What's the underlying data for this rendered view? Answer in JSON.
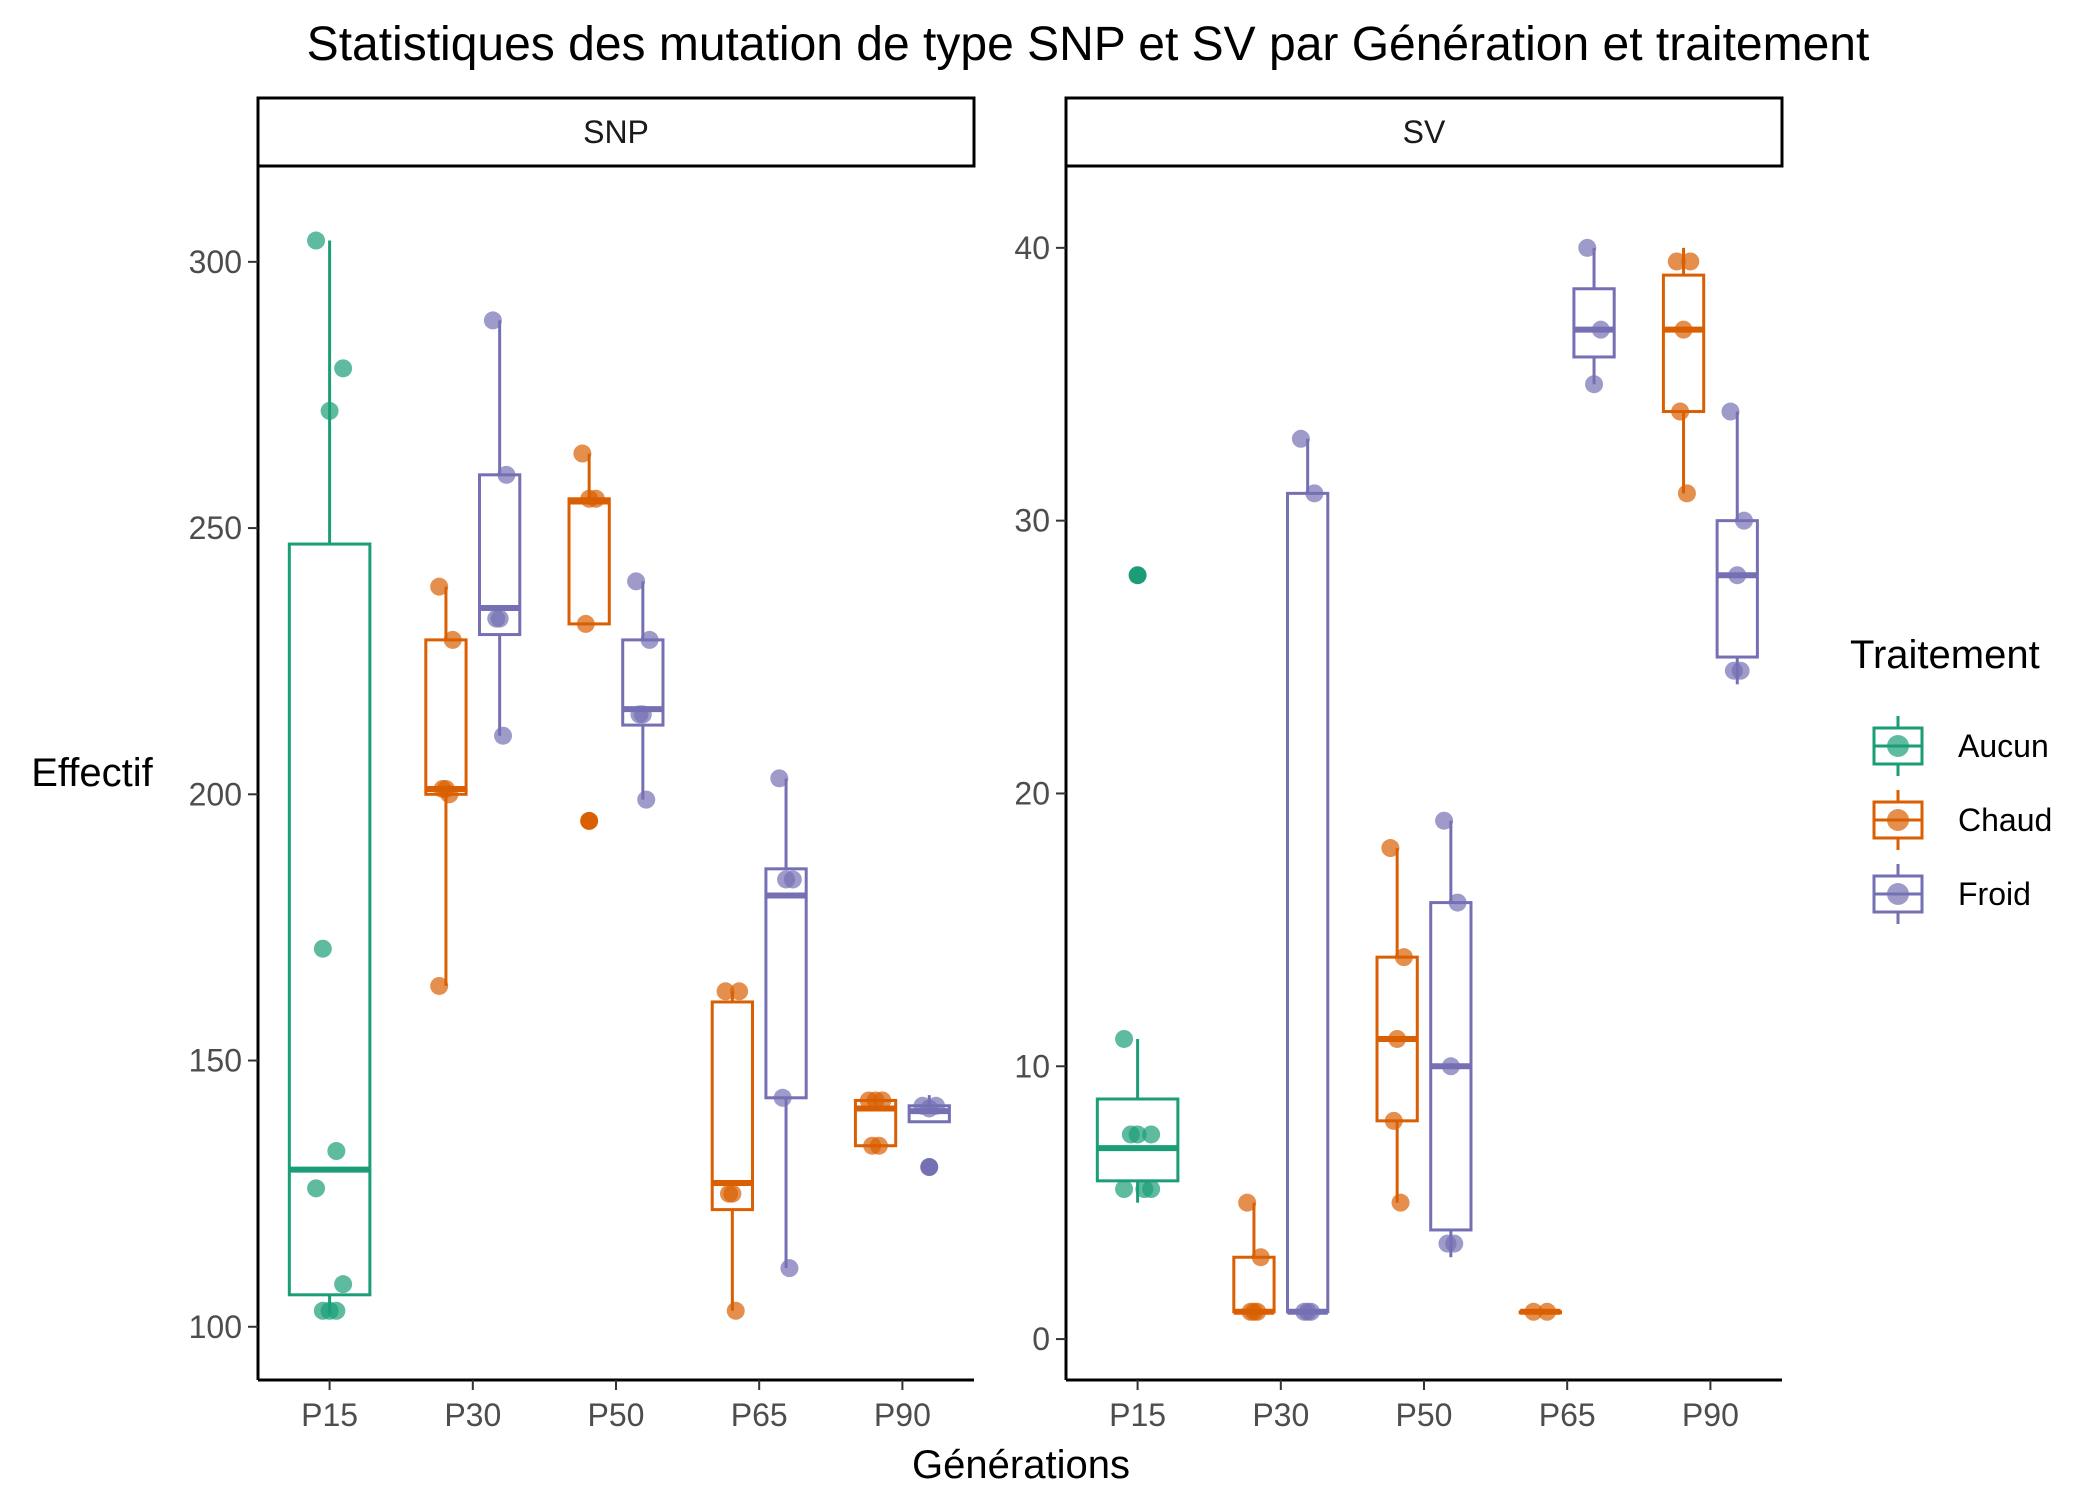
{
  "chart_data": {
    "type": "boxplot",
    "title": "Statistiques des mutation de type SNP et SV par Génération et traitement",
    "xlabel": "Générations",
    "ylabel": "Effectif",
    "categories": [
      "P15",
      "P30",
      "P50",
      "P65",
      "P90"
    ],
    "legend": {
      "title": "Traitement",
      "placement": "right",
      "entries": [
        {
          "name": "Aucun",
          "color": "#1b9e77"
        },
        {
          "name": "Chaud",
          "color": "#d95f02"
        },
        {
          "name": "Froid",
          "color": "#7570b3"
        }
      ]
    },
    "grid": false,
    "panels": [
      {
        "name": "SNP",
        "ylim": [
          90,
          318
        ],
        "yticks": [
          100,
          150,
          200,
          250,
          300
        ],
        "boxes": [
          {
            "category": "P15",
            "treatment": "Aucun",
            "q1": 106,
            "median": 129.5,
            "q3": 247,
            "whisker_low": 103,
            "whisker_high": 304,
            "outliers": [],
            "points": [
              304,
              280,
              272,
              171,
              133,
              126,
              108,
              103,
              103,
              103
            ]
          },
          {
            "category": "P30",
            "treatment": "Chaud",
            "q1": 200,
            "median": 201,
            "q3": 229,
            "whisker_low": 164,
            "whisker_high": 239,
            "outliers": [],
            "points": [
              239,
              229,
              201,
              201,
              200,
              164
            ]
          },
          {
            "category": "P30",
            "treatment": "Froid",
            "q1": 230,
            "median": 235,
            "q3": 260,
            "whisker_low": 211,
            "whisker_high": 289,
            "outliers": [],
            "points": [
              289,
              260,
              233,
              233,
              211
            ]
          },
          {
            "category": "P50",
            "treatment": "Chaud",
            "q1": 232,
            "median": 255,
            "q3": 255.5,
            "whisker_low": 232,
            "whisker_high": 264,
            "outliers": [
              195
            ],
            "points": [
              264,
              255.5,
              255.5,
              232
            ]
          },
          {
            "category": "P50",
            "treatment": "Froid",
            "q1": 213,
            "median": 216,
            "q3": 229,
            "whisker_low": 199,
            "whisker_high": 240,
            "outliers": [],
            "points": [
              240,
              229,
              215,
              215,
              199
            ]
          },
          {
            "category": "P65",
            "treatment": "Chaud",
            "q1": 122,
            "median": 127,
            "q3": 161,
            "whisker_low": 103,
            "whisker_high": 163,
            "outliers": [],
            "points": [
              163,
              163,
              125,
              125,
              103
            ]
          },
          {
            "category": "P65",
            "treatment": "Froid",
            "q1": 143,
            "median": 181,
            "q3": 186,
            "whisker_low": 111,
            "whisker_high": 203,
            "outliers": [],
            "points": [
              203,
              184,
              184,
              143,
              111
            ]
          },
          {
            "category": "P90",
            "treatment": "Chaud",
            "q1": 134,
            "median": 141,
            "q3": 142.5,
            "whisker_low": 134,
            "whisker_high": 142.5,
            "outliers": [],
            "points": [
              142.5,
              142.5,
              142.5,
              134,
              134
            ]
          },
          {
            "category": "P90",
            "treatment": "Froid",
            "q1": 138.5,
            "median": 140.5,
            "q3": 141.5,
            "whisker_low": 138.5,
            "whisker_high": 143.5,
            "outliers": [
              130
            ],
            "points": [
              141.5,
              141.5,
              141
            ]
          }
        ]
      },
      {
        "name": "SV",
        "ylim": [
          -1.5,
          43
        ],
        "yticks": [
          0,
          10,
          20,
          30,
          40
        ],
        "boxes": [
          {
            "category": "P15",
            "treatment": "Aucun",
            "q1": 5.8,
            "median": 7,
            "q3": 8.8,
            "whisker_low": 5,
            "whisker_high": 11,
            "outliers": [
              28
            ],
            "points": [
              11,
              7.5,
              7.5,
              7.5,
              5.5,
              5.5,
              5.5
            ]
          },
          {
            "category": "P30",
            "treatment": "Chaud",
            "q1": 1,
            "median": 1,
            "q3": 3,
            "whisker_low": 1,
            "whisker_high": 5,
            "outliers": [],
            "points": [
              5,
              3,
              1,
              1,
              1
            ]
          },
          {
            "category": "P30",
            "treatment": "Froid",
            "q1": 1,
            "median": 1,
            "q3": 31,
            "whisker_low": 1,
            "whisker_high": 33,
            "outliers": [],
            "points": [
              33,
              31,
              1,
              1,
              1
            ]
          },
          {
            "category": "P50",
            "treatment": "Chaud",
            "q1": 8,
            "median": 11,
            "q3": 14,
            "whisker_low": 5,
            "whisker_high": 18,
            "outliers": [],
            "points": [
              18,
              14,
              11,
              8,
              5
            ]
          },
          {
            "category": "P50",
            "treatment": "Froid",
            "q1": 4,
            "median": 10,
            "q3": 16,
            "whisker_low": 3,
            "whisker_high": 19,
            "outliers": [],
            "points": [
              19,
              16,
              10,
              3.5,
              3.5
            ]
          },
          {
            "category": "P65",
            "treatment": "Chaud",
            "q1": 1,
            "median": 1,
            "q3": 1,
            "whisker_low": 1,
            "whisker_high": 1,
            "outliers": [],
            "points": [
              1,
              1
            ]
          },
          {
            "category": "P65",
            "treatment": "Froid",
            "q1": 36,
            "median": 37,
            "q3": 38.5,
            "whisker_low": 35,
            "whisker_high": 40,
            "outliers": [],
            "points": [
              40,
              37,
              35
            ]
          },
          {
            "category": "P90",
            "treatment": "Chaud",
            "q1": 34,
            "median": 37,
            "q3": 39,
            "whisker_low": 31,
            "whisker_high": 40,
            "outliers": [],
            "points": [
              39.5,
              39.5,
              37,
              34,
              31
            ]
          },
          {
            "category": "P90",
            "treatment": "Froid",
            "q1": 25,
            "median": 28,
            "q3": 30,
            "whisker_low": 24,
            "whisker_high": 34,
            "outliers": [],
            "points": [
              34,
              30,
              28,
              24.5,
              24.5
            ]
          }
        ]
      }
    ]
  }
}
